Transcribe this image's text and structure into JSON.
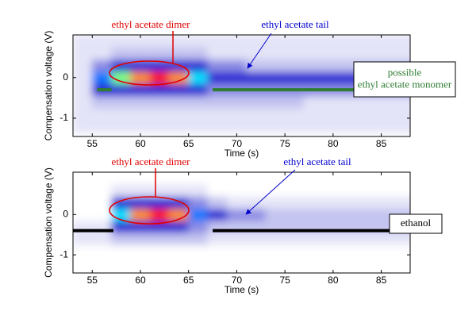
{
  "chart_data": [
    {
      "type": "contour",
      "xlabel": "Time (s)",
      "ylabel": "Compensation voltage (V)",
      "xlim": [
        53,
        88
      ],
      "ylim": [
        -1.45,
        1.05
      ],
      "xticks": [
        55,
        60,
        65,
        70,
        75,
        80,
        85
      ],
      "yticks": [
        -1,
        0
      ],
      "colormap": [
        "#ffffff",
        "#e4e4f8",
        "#c4c4f0",
        "#8c8ce4",
        "#2a2ad4",
        "#0078ff",
        "#00e0ff",
        "#80ff80",
        "#ffff00",
        "#ff8c00",
        "#ff1a00"
      ],
      "x": [
        54,
        56,
        58,
        60,
        62,
        64,
        66,
        68,
        70,
        72,
        74,
        76,
        78,
        80,
        82,
        84,
        86,
        88
      ],
      "y": [
        -1.2,
        -0.9,
        -0.6,
        -0.3,
        0,
        0.3,
        0.6,
        0.9
      ],
      "z": [
        [
          1,
          1,
          1,
          1,
          1,
          1,
          1,
          1,
          1,
          1,
          1,
          1,
          1,
          1,
          1,
          1,
          1,
          1
        ],
        [
          1,
          1,
          1,
          1,
          1,
          1,
          1,
          1,
          1,
          1,
          1,
          1,
          1,
          1,
          1,
          1,
          1,
          1
        ],
        [
          1,
          2,
          2,
          2,
          2,
          2,
          2,
          2,
          2,
          2,
          2,
          2,
          1,
          1,
          1,
          1,
          1,
          1
        ],
        [
          1,
          4,
          4,
          4,
          4,
          4,
          4,
          3,
          3,
          3,
          3,
          3,
          3,
          3,
          3,
          3,
          3,
          3
        ],
        [
          1,
          5,
          7,
          9,
          10,
          9,
          6,
          4,
          4,
          4,
          4,
          4,
          4,
          4,
          4,
          4,
          4,
          4
        ],
        [
          1,
          3,
          4,
          4,
          4,
          4,
          4,
          3,
          3,
          2,
          2,
          2,
          2,
          2,
          2,
          2,
          2,
          2
        ],
        [
          1,
          1,
          2,
          2,
          2,
          2,
          2,
          1,
          1,
          1,
          1,
          1,
          1,
          1,
          1,
          1,
          1,
          1
        ],
        [
          1,
          1,
          1,
          1,
          1,
          1,
          1,
          1,
          1,
          1,
          1,
          1,
          1,
          1,
          1,
          1,
          1,
          1
        ]
      ],
      "lines": [
        {
          "color": "#2e7d32",
          "x": [
            55.5,
            57
          ],
          "y": [
            -0.3,
            -0.3
          ]
        },
        {
          "color": "#2e7d32",
          "x": [
            67.5,
            88
          ],
          "y": [
            -0.3,
            -0.3
          ]
        }
      ],
      "annotations": [
        {
          "text": "ethyl acetate dimer",
          "color": "#e00000"
        },
        {
          "text": "ethyl acetate tail",
          "color": "#0000cc"
        },
        {
          "lines": [
            "possible",
            "ethyl acetate monomer"
          ],
          "color": "#2e7d32"
        }
      ]
    },
    {
      "type": "contour",
      "xlabel": "Time (s)",
      "ylabel": "Compensation voltage (V)",
      "xlim": [
        53,
        88
      ],
      "ylim": [
        -1.45,
        1.05
      ],
      "xticks": [
        55,
        60,
        65,
        70,
        75,
        80,
        85
      ],
      "yticks": [
        -1,
        0
      ],
      "colormap": [
        "#ffffff",
        "#e4e4f8",
        "#c4c4f0",
        "#8c8ce4",
        "#2a2ad4",
        "#0078ff",
        "#00e0ff",
        "#80ff80",
        "#ffff00",
        "#ff8c00",
        "#ff1a00"
      ],
      "x": [
        54,
        56,
        58,
        60,
        62,
        64,
        66,
        68,
        70,
        72,
        74,
        76,
        78,
        80,
        82,
        84,
        86,
        88
      ],
      "y": [
        -1.2,
        -0.9,
        -0.6,
        -0.3,
        0,
        0.3,
        0.6,
        0.9
      ],
      "z": [
        [
          0,
          0,
          0,
          0,
          0,
          0,
          0,
          0,
          0,
          0,
          0,
          0,
          0,
          0,
          0,
          0,
          0,
          0
        ],
        [
          0,
          0,
          0,
          0,
          0,
          0,
          0,
          0,
          0,
          0,
          0,
          0,
          0,
          0,
          0,
          0,
          0,
          0
        ],
        [
          1,
          1,
          2,
          2,
          2,
          2,
          2,
          1,
          1,
          1,
          1,
          1,
          1,
          1,
          1,
          1,
          1,
          1
        ],
        [
          1,
          1,
          4,
          4,
          4,
          4,
          3,
          2,
          2,
          2,
          2,
          2,
          2,
          2,
          2,
          2,
          2,
          2
        ],
        [
          0,
          0,
          6,
          9,
          10,
          9,
          5,
          4,
          3,
          3,
          2,
          2,
          2,
          2,
          2,
          2,
          2,
          2
        ],
        [
          0,
          0,
          4,
          4,
          4,
          4,
          3,
          2,
          1,
          1,
          1,
          1,
          1,
          1,
          1,
          1,
          1,
          1
        ],
        [
          0,
          0,
          1,
          1,
          1,
          1,
          1,
          0,
          0,
          0,
          0,
          0,
          0,
          0,
          0,
          0,
          0,
          0
        ],
        [
          0,
          0,
          0,
          0,
          0,
          0,
          0,
          0,
          0,
          0,
          0,
          0,
          0,
          0,
          0,
          0,
          0,
          0
        ]
      ],
      "lines": [
        {
          "color": "#000000",
          "x": [
            53,
            57.2
          ],
          "y": [
            -0.4,
            -0.4
          ]
        },
        {
          "color": "#000000",
          "x": [
            67.5,
            88
          ],
          "y": [
            -0.4,
            -0.4
          ]
        }
      ],
      "annotations": [
        {
          "text": "ethyl acetate dimer",
          "color": "#e00000"
        },
        {
          "text": "ethyl acetate tail",
          "color": "#0000cc"
        },
        {
          "lines": [
            "ethanol"
          ],
          "color": "#000000"
        }
      ]
    }
  ]
}
